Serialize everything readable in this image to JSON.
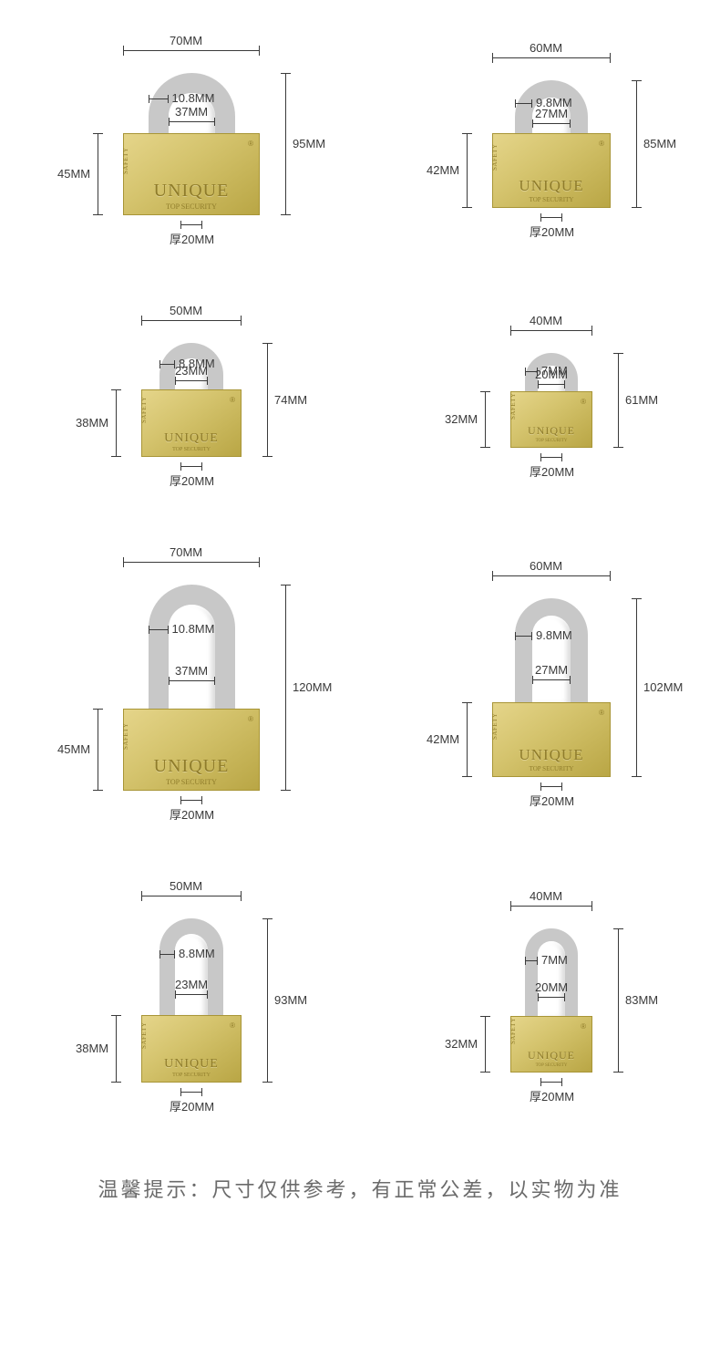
{
  "brand": "UNIQUE",
  "subtitle": "TOP SECURITY",
  "side_text": "SAFETY",
  "registered_mark": "®",
  "thickness_prefix": "厚",
  "body_color_top": "#e5d58a",
  "body_color_bottom": "#b9a645",
  "shackle_color": "#c8c8c8",
  "dim_color": "#3a3a3a",
  "footer": "温馨提示：尺寸仅供参考，有正常公差，以实物为准",
  "locks": [
    {
      "width": "70MM",
      "total_h": "95MM",
      "body_h": "45MM",
      "shackle_d": "10.8MM",
      "gap": "37MM",
      "thick": "20MM",
      "bw": 150,
      "bh": 90,
      "sw": 95,
      "sh": 70,
      "sbw": 22
    },
    {
      "width": "60MM",
      "total_h": "85MM",
      "body_h": "42MM",
      "shackle_d": "9.8MM",
      "gap": "27MM",
      "thick": "20MM",
      "bw": 130,
      "bh": 82,
      "sw": 80,
      "sh": 62,
      "sbw": 19
    },
    {
      "width": "50MM",
      "total_h": "74MM",
      "body_h": "38MM",
      "shackle_d": "8.8MM",
      "gap": "23MM",
      "thick": "20MM",
      "bw": 110,
      "bh": 74,
      "sw": 70,
      "sh": 55,
      "sbw": 17
    },
    {
      "width": "40MM",
      "total_h": "61MM",
      "body_h": "32MM",
      "shackle_d": "7MM",
      "gap": "20MM",
      "thick": "20MM",
      "bw": 90,
      "bh": 62,
      "sw": 58,
      "sh": 46,
      "sbw": 14
    },
    {
      "width": "70MM",
      "total_h": "120MM",
      "body_h": "45MM",
      "shackle_d": "10.8MM",
      "gap": "37MM",
      "thick": "20MM",
      "bw": 150,
      "bh": 90,
      "sw": 95,
      "sh": 140,
      "sbw": 22
    },
    {
      "width": "60MM",
      "total_h": "102MM",
      "body_h": "42MM",
      "shackle_d": "9.8MM",
      "gap": "27MM",
      "thick": "20MM",
      "bw": 130,
      "bh": 82,
      "sw": 80,
      "sh": 118,
      "sbw": 19
    },
    {
      "width": "50MM",
      "total_h": "93MM",
      "body_h": "38MM",
      "shackle_d": "8.8MM",
      "gap": "23MM",
      "thick": "20MM",
      "bw": 110,
      "bh": 74,
      "sw": 70,
      "sh": 110,
      "sbw": 17
    },
    {
      "width": "40MM",
      "total_h": "83MM",
      "body_h": "32MM",
      "shackle_d": "7MM",
      "gap": "20MM",
      "thick": "20MM",
      "bw": 90,
      "bh": 62,
      "sw": 58,
      "sh": 100,
      "sbw": 14
    }
  ]
}
